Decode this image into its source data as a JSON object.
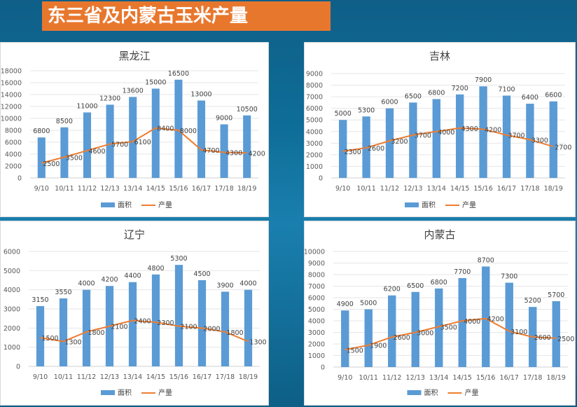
{
  "page_title": "东三省及内蒙古玉米产量",
  "colors": {
    "bar": "#5b9bd5",
    "line": "#ed7d31",
    "title_bg": "#e8772e"
  },
  "chart_data": [
    {
      "type": "bar",
      "title": "黑龙江",
      "categories": [
        "9/10",
        "10/11",
        "11/12",
        "12/13",
        "13/14",
        "14/15",
        "15/16",
        "16/17",
        "17/18",
        "18/19"
      ],
      "series": [
        {
          "name": "面积",
          "type": "bar",
          "values": [
            6800,
            8500,
            11000,
            12300,
            13600,
            15000,
            16500,
            13000,
            9000,
            10500
          ]
        },
        {
          "name": "产量",
          "type": "line",
          "values": [
            2500,
            3500,
            4600,
            5700,
            6100,
            8400,
            8000,
            4700,
            4300,
            4200
          ]
        }
      ],
      "ylim": [
        0,
        18000
      ],
      "yticks": [
        "0",
        "2000",
        "4000",
        "6000",
        "8000",
        "10000",
        "12000",
        "14000",
        "16000",
        "18000"
      ],
      "legend": "bottom"
    },
    {
      "type": "bar",
      "title": "吉林",
      "categories": [
        "9/10",
        "10/11",
        "11/12",
        "12/13",
        "13/14",
        "14/15",
        "15/16",
        "16/17",
        "17/18",
        "18/19"
      ],
      "series": [
        {
          "name": "面积",
          "type": "bar",
          "values": [
            5000,
            5300,
            6000,
            6500,
            6800,
            7200,
            7900,
            7100,
            6400,
            6600
          ]
        },
        {
          "name": "产量",
          "type": "line",
          "values": [
            2300,
            2600,
            3200,
            3700,
            4000,
            4300,
            4200,
            3700,
            3300,
            2700
          ]
        }
      ],
      "ylim": [
        0,
        9000
      ],
      "yticks": [
        "0",
        "1000",
        "2000",
        "3000",
        "4000",
        "5000",
        "6000",
        "7000",
        "8000",
        "9000"
      ],
      "legend": "bottom"
    },
    {
      "type": "bar",
      "title": "辽宁",
      "categories": [
        "9/10",
        "10/11",
        "11/12",
        "12/13",
        "13/14",
        "14/15",
        "15/16",
        "16/17",
        "17/18",
        "18/19"
      ],
      "series": [
        {
          "name": "面积",
          "type": "bar",
          "values": [
            3150,
            3550,
            4000,
            4200,
            4400,
            4800,
            5300,
            4500,
            3900,
            4000
          ]
        },
        {
          "name": "产量",
          "type": "line",
          "values": [
            1500,
            1300,
            1800,
            2100,
            2400,
            2300,
            2100,
            2000,
            1800,
            1300
          ]
        }
      ],
      "ylim": [
        0,
        6000
      ],
      "yticks": [
        "0",
        "1000",
        "2000",
        "3000",
        "4000",
        "5000",
        "6000"
      ],
      "legend": "bottom"
    },
    {
      "type": "bar",
      "title": "内蒙古",
      "categories": [
        "9/10",
        "10/11",
        "11/12",
        "12/13",
        "13/14",
        "14/15",
        "15/16",
        "16/17",
        "17/18",
        "18/19"
      ],
      "series": [
        {
          "name": "面积",
          "type": "bar",
          "values": [
            4900,
            5000,
            6200,
            6500,
            6800,
            7700,
            8700,
            7300,
            5200,
            5700
          ]
        },
        {
          "name": "产量",
          "type": "line",
          "values": [
            1500,
            1900,
            2600,
            3000,
            3500,
            4000,
            4200,
            3100,
            2600,
            2500
          ]
        }
      ],
      "ylim": [
        0,
        10000
      ],
      "yticks": [
        "0",
        "1000",
        "2000",
        "3000",
        "4000",
        "5000",
        "6000",
        "7000",
        "8000",
        "9000",
        "10000"
      ],
      "legend": "bottom"
    }
  ]
}
